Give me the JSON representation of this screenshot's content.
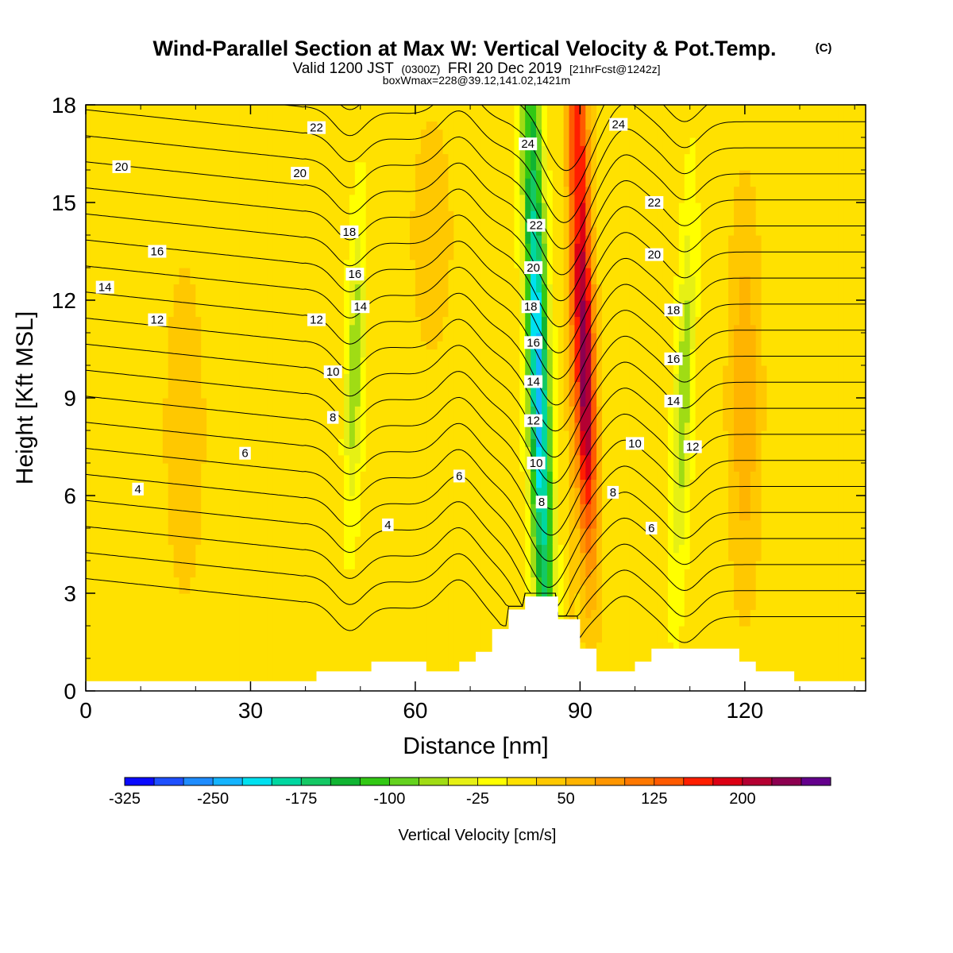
{
  "chart_data": {
    "type": "heatmap",
    "title": "Wind-Parallel Section at Max W: Vertical Velocity & Pot.Temp.",
    "title_mark": "(C)",
    "subtitle": {
      "valid": "Valid 1200 JST",
      "utc": "(0300Z)",
      "date": "FRI 20 Dec 2019",
      "fcst": "[21hrFcst@1242z]"
    },
    "box_info": "boxWmax=228@39.12,141.02,1421m",
    "xlabel": "Distance [nm]",
    "ylabel": "Height [Kft MSL]",
    "xlim": [
      0,
      142
    ],
    "ylim": [
      0,
      18
    ],
    "x_ticks": [
      0,
      30,
      60,
      90,
      120
    ],
    "y_ticks": [
      0,
      3,
      6,
      9,
      12,
      15,
      18
    ],
    "colorbar": {
      "label": "Vertical Velocity [cm/s]",
      "tick_labels": [
        "-325",
        "-250",
        "-175",
        "-100",
        "-25",
        "50",
        "125",
        "200"
      ],
      "tick_values": [
        -325,
        -250,
        -175,
        -100,
        -25,
        50,
        125,
        200
      ],
      "min": -325,
      "max": 250,
      "step": 25,
      "colors": [
        "#0a0aff",
        "#1e50ff",
        "#1e8cff",
        "#14b4ff",
        "#00e1f0",
        "#00d7a0",
        "#14c864",
        "#10b432",
        "#32c814",
        "#64d21e",
        "#a0dc14",
        "#e6f014",
        "#ffff00",
        "#ffe100",
        "#ffc800",
        "#ffb400",
        "#ff9600",
        "#ff7800",
        "#ff5a00",
        "#ff1e00",
        "#dc0014",
        "#b40032",
        "#8c0050",
        "#64008c"
      ]
    },
    "terrain": [
      [
        0,
        0.3
      ],
      [
        42,
        0.3
      ],
      [
        42,
        0.6
      ],
      [
        52,
        0.6
      ],
      [
        52,
        0.9
      ],
      [
        62,
        0.9
      ],
      [
        62,
        0.6
      ],
      [
        68,
        0.6
      ],
      [
        68,
        0.9
      ],
      [
        71,
        0.9
      ],
      [
        71,
        1.2
      ],
      [
        74,
        1.2
      ],
      [
        74,
        1.9
      ],
      [
        77,
        1.9
      ],
      [
        77,
        2.5
      ],
      [
        80,
        2.5
      ],
      [
        80,
        2.9
      ],
      [
        86,
        2.9
      ],
      [
        86,
        2.2
      ],
      [
        90,
        2.2
      ],
      [
        90,
        1.3
      ],
      [
        93,
        1.3
      ],
      [
        93,
        0.6
      ],
      [
        100,
        0.6
      ],
      [
        100,
        0.9
      ],
      [
        103,
        0.9
      ],
      [
        103,
        1.3
      ],
      [
        119,
        1.3
      ],
      [
        119,
        0.9
      ],
      [
        122,
        0.9
      ],
      [
        122,
        0.6
      ],
      [
        129,
        0.6
      ],
      [
        129,
        0.3
      ],
      [
        142,
        0.3
      ]
    ],
    "w_field": {
      "base_cm_s": 10,
      "features": [
        {
          "name": "downdraft",
          "x_bottom": 84,
          "x_top": 81,
          "w": -250
        },
        {
          "name": "updraft",
          "x_bottom": 90,
          "x_top": 90,
          "w": 228
        },
        {
          "name": "weak-down-1",
          "x": 49,
          "w": -80
        },
        {
          "name": "weak-down-2",
          "x": 109,
          "w": -80
        },
        {
          "name": "weak-up",
          "x": 120,
          "w": 60
        }
      ]
    },
    "isentropes": [
      {
        "level": 4
      },
      {
        "level": 5
      },
      {
        "level": 6
      },
      {
        "level": 7
      },
      {
        "level": 8
      },
      {
        "level": 9
      },
      {
        "level": 10
      },
      {
        "level": 11
      },
      {
        "level": 12
      },
      {
        "level": 13
      },
      {
        "level": 14
      },
      {
        "level": 15
      },
      {
        "level": 16
      },
      {
        "level": 17
      },
      {
        "level": 18
      },
      {
        "level": 19
      },
      {
        "level": 20
      },
      {
        "level": 21
      },
      {
        "level": 22
      },
      {
        "level": 23
      },
      {
        "level": 24
      }
    ],
    "isentrope_labels": [
      {
        "text": "22",
        "x": 42,
        "y": 17.3
      },
      {
        "text": "20",
        "x": 6.5,
        "y": 16.1
      },
      {
        "text": "20",
        "x": 39,
        "y": 15.9
      },
      {
        "text": "18",
        "x": 48,
        "y": 14.1
      },
      {
        "text": "16",
        "x": 13,
        "y": 13.5
      },
      {
        "text": "16",
        "x": 49,
        "y": 12.8
      },
      {
        "text": "14",
        "x": 3.5,
        "y": 12.4
      },
      {
        "text": "14",
        "x": 50,
        "y": 11.8
      },
      {
        "text": "12",
        "x": 13,
        "y": 11.4
      },
      {
        "text": "12",
        "x": 42,
        "y": 11.4
      },
      {
        "text": "10",
        "x": 45,
        "y": 9.8
      },
      {
        "text": "8",
        "x": 45,
        "y": 8.4
      },
      {
        "text": "6",
        "x": 29,
        "y": 7.3
      },
      {
        "text": "4",
        "x": 9.5,
        "y": 6.2
      },
      {
        "text": "6",
        "x": 68,
        "y": 6.6
      },
      {
        "text": "4",
        "x": 55,
        "y": 5.1
      },
      {
        "text": "24",
        "x": 80.5,
        "y": 16.8
      },
      {
        "text": "22",
        "x": 82,
        "y": 14.3
      },
      {
        "text": "20",
        "x": 81.5,
        "y": 13.0
      },
      {
        "text": "18",
        "x": 81,
        "y": 11.8
      },
      {
        "text": "16",
        "x": 81.5,
        "y": 10.7
      },
      {
        "text": "14",
        "x": 81.5,
        "y": 9.5
      },
      {
        "text": "12",
        "x": 81.5,
        "y": 8.3
      },
      {
        "text": "10",
        "x": 82,
        "y": 7.0
      },
      {
        "text": "8",
        "x": 83,
        "y": 5.8
      },
      {
        "text": "24",
        "x": 97,
        "y": 17.4
      },
      {
        "text": "22",
        "x": 103.5,
        "y": 15.0
      },
      {
        "text": "20",
        "x": 103.5,
        "y": 13.4
      },
      {
        "text": "18",
        "x": 107,
        "y": 11.7
      },
      {
        "text": "16",
        "x": 107,
        "y": 10.2
      },
      {
        "text": "14",
        "x": 107,
        "y": 8.9
      },
      {
        "text": "12",
        "x": 110.5,
        "y": 7.5
      },
      {
        "text": "10",
        "x": 100,
        "y": 7.6
      },
      {
        "text": "8",
        "x": 96,
        "y": 6.1
      },
      {
        "text": "6",
        "x": 103,
        "y": 5.0
      }
    ]
  }
}
